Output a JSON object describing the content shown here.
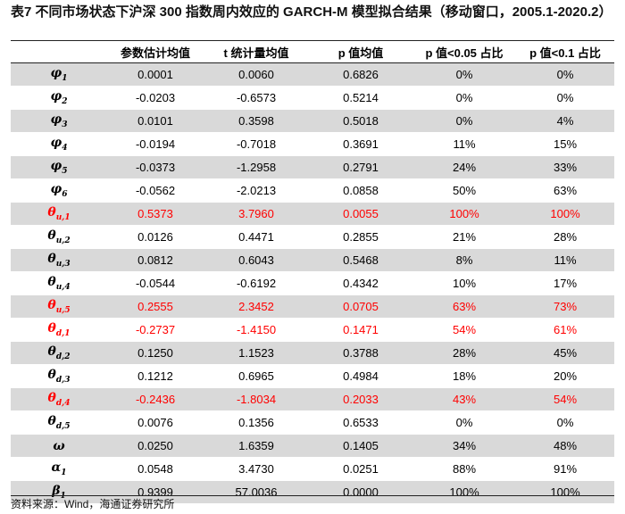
{
  "title": "表7 不同市场状态下沪深 300 指数周内效应的 GARCH-M 模型拟合结果（移动窗口，2005.1-2020.2）",
  "columns": [
    "",
    "参数估计均值",
    "t 统计量均值",
    "p 值均值",
    "p 值<0.05 占比",
    "p 值<0.1 占比"
  ],
  "rows": [
    {
      "sym": "φ",
      "sub": "1",
      "est": "0.0001",
      "t": "0.0060",
      "p": "0.6826",
      "p05": "0%",
      "p10": "0%",
      "highlight": false
    },
    {
      "sym": "φ",
      "sub": "2",
      "est": "-0.0203",
      "t": "-0.6573",
      "p": "0.5214",
      "p05": "0%",
      "p10": "0%",
      "highlight": false
    },
    {
      "sym": "φ",
      "sub": "3",
      "est": "0.0101",
      "t": "0.3598",
      "p": "0.5018",
      "p05": "0%",
      "p10": "4%",
      "highlight": false
    },
    {
      "sym": "φ",
      "sub": "4",
      "est": "-0.0194",
      "t": "-0.7018",
      "p": "0.3691",
      "p05": "11%",
      "p10": "15%",
      "highlight": false
    },
    {
      "sym": "φ",
      "sub": "5",
      "est": "-0.0373",
      "t": "-1.2958",
      "p": "0.2791",
      "p05": "24%",
      "p10": "33%",
      "highlight": false
    },
    {
      "sym": "φ",
      "sub": "6",
      "est": "-0.0562",
      "t": "-2.0213",
      "p": "0.0858",
      "p05": "50%",
      "p10": "63%",
      "highlight": false
    },
    {
      "sym": "θ",
      "sub": "u,1",
      "est": "0.5373",
      "t": "3.7960",
      "p": "0.0055",
      "p05": "100%",
      "p10": "100%",
      "highlight": true
    },
    {
      "sym": "θ",
      "sub": "u,2",
      "est": "0.0126",
      "t": "0.4471",
      "p": "0.2855",
      "p05": "21%",
      "p10": "28%",
      "highlight": false
    },
    {
      "sym": "θ",
      "sub": "u,3",
      "est": "0.0812",
      "t": "0.6043",
      "p": "0.5468",
      "p05": "8%",
      "p10": "11%",
      "highlight": false
    },
    {
      "sym": "θ",
      "sub": "u,4",
      "est": "-0.0544",
      "t": "-0.6192",
      "p": "0.4342",
      "p05": "10%",
      "p10": "17%",
      "highlight": false
    },
    {
      "sym": "θ",
      "sub": "u,5",
      "est": "0.2555",
      "t": "2.3452",
      "p": "0.0705",
      "p05": "63%",
      "p10": "73%",
      "highlight": true
    },
    {
      "sym": "θ",
      "sub": "d,1",
      "est": "-0.2737",
      "t": "-1.4150",
      "p": "0.1471",
      "p05": "54%",
      "p10": "61%",
      "highlight": true
    },
    {
      "sym": "θ",
      "sub": "d,2",
      "est": "0.1250",
      "t": "1.1523",
      "p": "0.3788",
      "p05": "28%",
      "p10": "45%",
      "highlight": false
    },
    {
      "sym": "θ",
      "sub": "d,3",
      "est": "0.1212",
      "t": "0.6965",
      "p": "0.4984",
      "p05": "18%",
      "p10": "20%",
      "highlight": false
    },
    {
      "sym": "θ",
      "sub": "d,4",
      "est": "-0.2436",
      "t": "-1.8034",
      "p": "0.2033",
      "p05": "43%",
      "p10": "54%",
      "highlight": true
    },
    {
      "sym": "θ",
      "sub": "d,5",
      "est": "0.0076",
      "t": "0.1356",
      "p": "0.6533",
      "p05": "0%",
      "p10": "0%",
      "highlight": false
    },
    {
      "sym": "ω",
      "sub": "",
      "est": "0.0250",
      "t": "1.6359",
      "p": "0.1405",
      "p05": "34%",
      "p10": "48%",
      "highlight": false
    },
    {
      "sym": "α",
      "sub": "1",
      "est": "0.0548",
      "t": "3.4730",
      "p": "0.0251",
      "p05": "88%",
      "p10": "91%",
      "highlight": false
    },
    {
      "sym": "β",
      "sub": "1",
      "est": "0.9399",
      "t": "57.0036",
      "p": "0.0000",
      "p05": "100%",
      "p10": "100%",
      "highlight": false
    }
  ],
  "source": "资料来源：Wind，海通证券研究所",
  "colors": {
    "shade": "#d9d9d9",
    "highlight": "#ff0000",
    "rule": "#222222"
  }
}
